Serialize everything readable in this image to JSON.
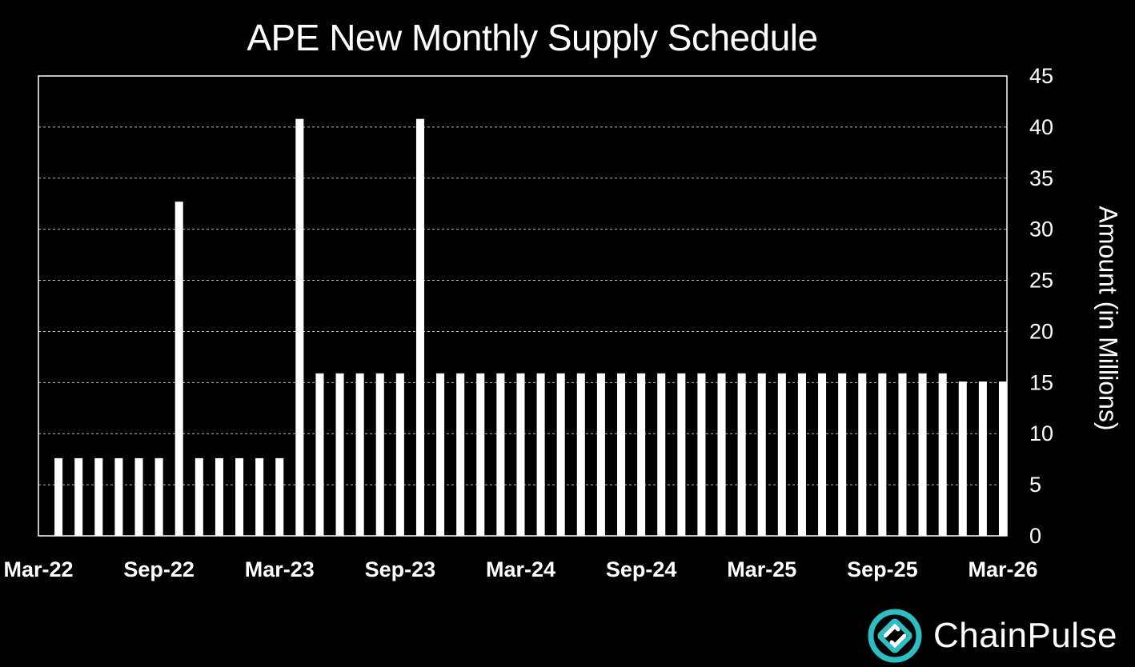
{
  "chart_data": {
    "type": "bar",
    "title": "APE New Monthly Supply Schedule",
    "ylabel": "Amount (in Millions)",
    "xlabel": "",
    "ylim": [
      0,
      45
    ],
    "y_ticks": [
      0,
      5,
      10,
      15,
      20,
      25,
      30,
      35,
      40,
      45
    ],
    "y_axis_position": "right",
    "grid": "horizontal dashed",
    "x_tick_labels": [
      "Mar-22",
      "Sep-22",
      "Mar-23",
      "Sep-23",
      "Mar-24",
      "Sep-24",
      "Mar-25",
      "Sep-25",
      "Mar-26"
    ],
    "categories": [
      "Apr-22",
      "May-22",
      "Jun-22",
      "Jul-22",
      "Aug-22",
      "Sep-22",
      "Oct-22",
      "Nov-22",
      "Dec-22",
      "Jan-23",
      "Feb-23",
      "Mar-23",
      "Apr-23",
      "May-23",
      "Jun-23",
      "Jul-23",
      "Aug-23",
      "Sep-23",
      "Oct-23",
      "Nov-23",
      "Dec-23",
      "Jan-24",
      "Feb-24",
      "Mar-24",
      "Apr-24",
      "May-24",
      "Jun-24",
      "Jul-24",
      "Aug-24",
      "Sep-24",
      "Oct-24",
      "Nov-24",
      "Dec-24",
      "Jan-25",
      "Feb-25",
      "Mar-25",
      "Apr-25",
      "May-25",
      "Jun-25",
      "Jul-25",
      "Aug-25",
      "Sep-25",
      "Oct-25",
      "Nov-25",
      "Dec-25",
      "Jan-26",
      "Feb-26",
      "Mar-26"
    ],
    "values": [
      7.6,
      7.6,
      7.6,
      7.6,
      7.6,
      7.6,
      32.7,
      7.6,
      7.6,
      7.6,
      7.6,
      7.6,
      40.8,
      15.9,
      15.9,
      15.9,
      15.9,
      15.9,
      40.8,
      15.9,
      15.9,
      15.9,
      15.9,
      15.9,
      15.9,
      15.9,
      15.9,
      15.9,
      15.9,
      15.9,
      15.9,
      15.9,
      15.9,
      15.9,
      15.9,
      15.9,
      15.9,
      15.9,
      15.9,
      15.9,
      15.9,
      15.9,
      15.9,
      15.9,
      15.9,
      15.1,
      15.1,
      15.1
    ],
    "colors": {
      "background": "#000000",
      "bar": "#ffffff",
      "text": "#ffffff",
      "grid": "#bbbbbb"
    }
  },
  "brand": {
    "name": "ChainPulse",
    "logo_icon": "chainpulse-logo-icon",
    "accent": "#2bbfc4"
  }
}
